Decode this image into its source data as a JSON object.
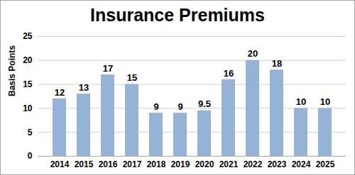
{
  "chart_data": {
    "type": "bar",
    "title": "Insurance Premiums",
    "y_label": "Basis Points",
    "categories": [
      "2014",
      "2015",
      "2016",
      "2017",
      "2018",
      "2019",
      "2020",
      "2021",
      "2022",
      "2023",
      "2024",
      "2025"
    ],
    "values": [
      12,
      13,
      17,
      15,
      9,
      9,
      9.5,
      16,
      20,
      18,
      10,
      10
    ],
    "color": "#95b3d7",
    "ylim": [
      0,
      25
    ],
    "yticks": [
      0,
      5,
      10,
      15,
      20,
      25
    ],
    "grid": true,
    "data_labels": true
  }
}
